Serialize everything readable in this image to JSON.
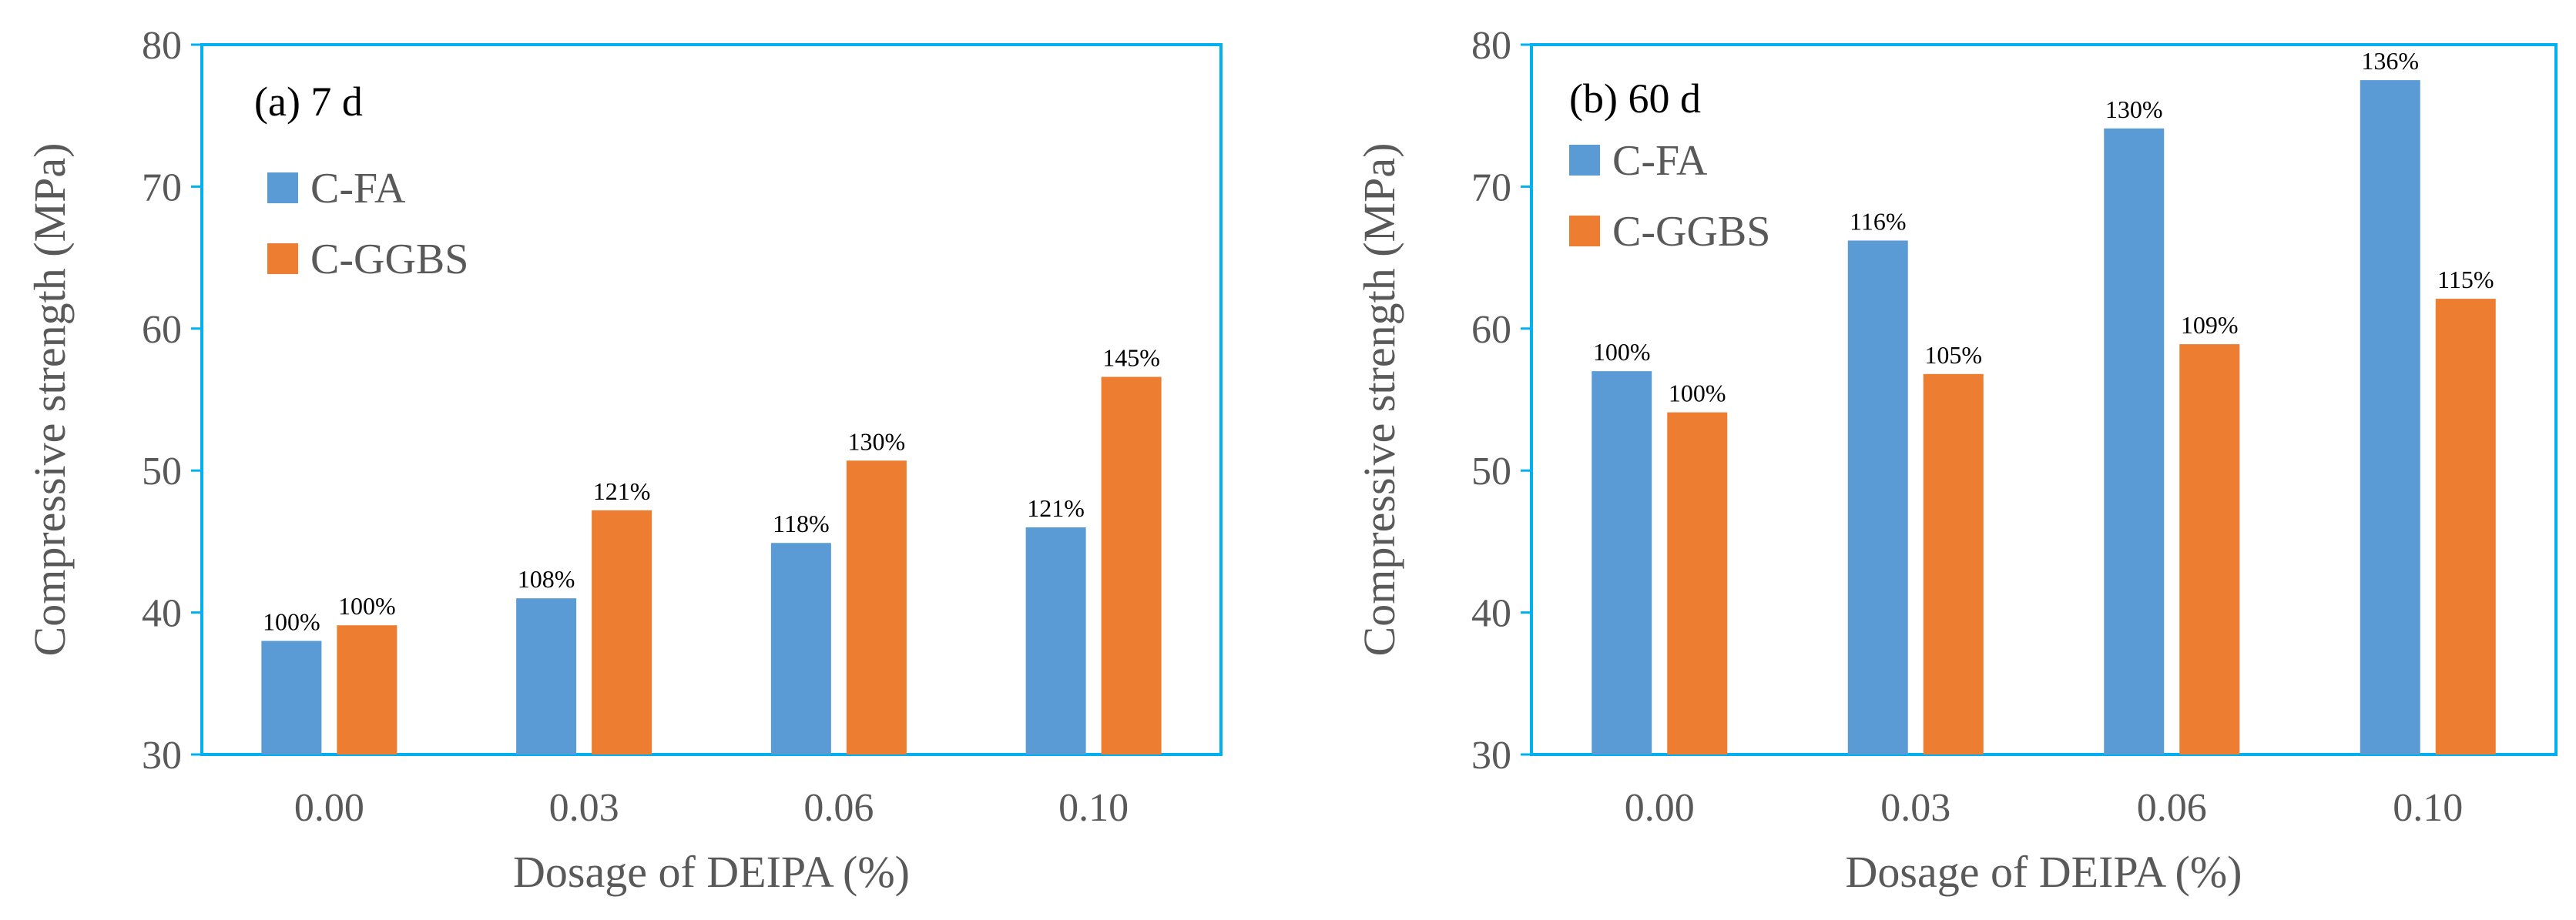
{
  "colors": {
    "C-FA": "#5b9bd5",
    "C-GGBS": "#ed7d31",
    "frame": "#00b0f0",
    "text": "#595959"
  },
  "chart_data": [
    {
      "type": "bar",
      "panel_label": "(a) 7 d",
      "xlabel": "Dosage of DEIPA (%)",
      "ylabel": "Compressive strength (MPa)",
      "ylim": [
        30,
        80
      ],
      "yticks": [
        "30",
        "40",
        "50",
        "60",
        "70",
        "80"
      ],
      "categories": [
        "0.00",
        "0.03",
        "0.06",
        "0.10"
      ],
      "legend_position": "top-left",
      "grid": false,
      "series": [
        {
          "name": "C-FA",
          "values": [
            38.0,
            41.0,
            44.9,
            46.0
          ],
          "labels": [
            "100%",
            "108%",
            "118%",
            "121%"
          ]
        },
        {
          "name": "C-GGBS",
          "values": [
            39.1,
            47.2,
            50.7,
            56.6
          ],
          "labels": [
            "100%",
            "121%",
            "130%",
            "145%"
          ]
        }
      ]
    },
    {
      "type": "bar",
      "panel_label": "(b) 60 d",
      "xlabel": "Dosage of DEIPA (%)",
      "ylabel": "Compressive strength (MPa)",
      "ylim": [
        30,
        80
      ],
      "yticks": [
        "30",
        "40",
        "50",
        "60",
        "70",
        "80"
      ],
      "categories": [
        "0.00",
        "0.03",
        "0.06",
        "0.10"
      ],
      "legend_position": "top-left",
      "grid": false,
      "series": [
        {
          "name": "C-FA",
          "values": [
            57.0,
            66.2,
            74.1,
            77.5
          ],
          "labels": [
            "100%",
            "116%",
            "130%",
            "136%"
          ]
        },
        {
          "name": "C-GGBS",
          "values": [
            54.1,
            56.8,
            58.9,
            62.1
          ],
          "labels": [
            "100%",
            "105%",
            "109%",
            "115%"
          ]
        }
      ]
    }
  ]
}
